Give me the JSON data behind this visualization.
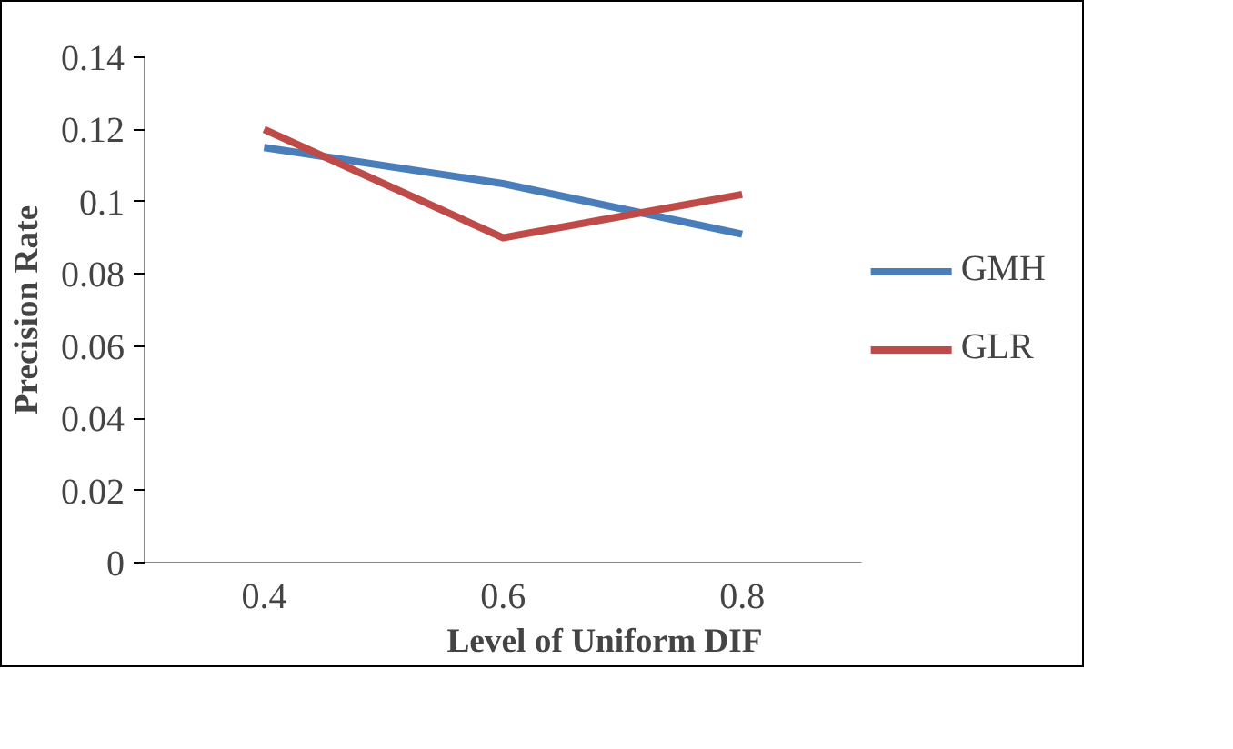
{
  "chart_data": {
    "type": "line",
    "xlabel": "Level of Uniform DIF",
    "ylabel": "Precision Rate",
    "categories": [
      "0.4",
      "0.6",
      "0.8"
    ],
    "series": [
      {
        "name": "GMH",
        "color": "#4a7ebb",
        "values": [
          0.115,
          0.105,
          0.091
        ]
      },
      {
        "name": "GLR",
        "color": "#be4b48",
        "values": [
          0.12,
          0.09,
          0.102
        ]
      }
    ],
    "ylim": [
      0,
      0.14
    ],
    "yticks": [
      0,
      0.02,
      0.04,
      0.06,
      0.08,
      0.1,
      0.12,
      0.14
    ],
    "grid": false,
    "legend": "right",
    "marker": "none",
    "line_style": "solid"
  }
}
